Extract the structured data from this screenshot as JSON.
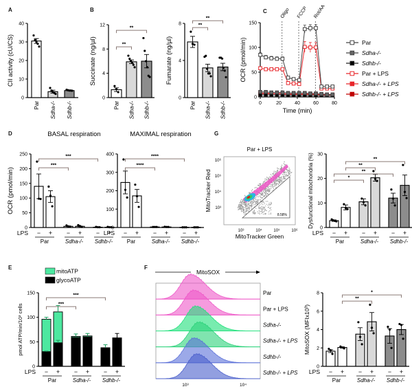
{
  "panels": {
    "A": "A",
    "B": "B",
    "C": "C",
    "D": "D",
    "E": "E",
    "F": "F",
    "G": "G"
  },
  "colors": {
    "white_bar": "#ffffff",
    "light_grey": "#d9d9d9",
    "dark_grey": "#8c8c8c",
    "mito_green": "#4de8a0",
    "glyco_black": "#000000",
    "red": "#e8262b",
    "sig_bracket": "#8a7a76",
    "magenta": "#ee58c8",
    "green_hist": "#1ee07a",
    "blue_hist": "#5a6fd8"
  },
  "lps_label": "LPS",
  "chart_data": [
    {
      "id": "A",
      "type": "bar",
      "ylabel": "CII activity (cU/CS)",
      "ylim": [
        0,
        40
      ],
      "yticks": [
        0,
        10,
        20,
        30,
        40
      ],
      "categories": [
        "Par",
        "Sdha-/-",
        "Sdhb-/-"
      ],
      "values": [
        30.5,
        3.2,
        3.8
      ],
      "errors": [
        1.3,
        0.8,
        0.2
      ],
      "points": [
        [
          33.5,
          31,
          30,
          29,
          27.5
        ],
        [
          5.2,
          3.8,
          3,
          2.5,
          2
        ],
        [
          4.2,
          4,
          3.8,
          3.8,
          3.7
        ]
      ],
      "fills": [
        "#ffffff",
        "#d9d9d9",
        "#8c8c8c"
      ]
    },
    {
      "id": "B1",
      "type": "bar",
      "ylabel": "Succinate (ng/µl)",
      "ylim": [
        0,
        12
      ],
      "yticks": [
        0,
        4,
        8,
        12
      ],
      "categories": [
        "Par",
        "Sdha-/-",
        "Sdhb-/-"
      ],
      "values": [
        1.3,
        5.9,
        6.0
      ],
      "errors": [
        0.3,
        0.3,
        1.1
      ],
      "points": [
        [
          1.9,
          1.4,
          0.9
        ],
        [
          6.9,
          6.4,
          6.0,
          5.8,
          5.4,
          5.0
        ],
        [
          9.8,
          7.7,
          6.0,
          5.0,
          3.6,
          3.4
        ]
      ],
      "fills": [
        "#ffffff",
        "#d9d9d9",
        "#8c8c8c"
      ],
      "significance": [
        {
          "from": 0,
          "to": 1,
          "label": "**",
          "level": 1
        },
        {
          "from": 0,
          "to": 2,
          "label": "**",
          "level": 2
        }
      ]
    },
    {
      "id": "B2",
      "type": "bar",
      "ylabel": "Fumarate (ng/µl)",
      "ylim": [
        0,
        8
      ],
      "yticks": [
        0,
        4,
        8
      ],
      "categories": [
        "Par",
        "Sdha-/-",
        "Sdhb-/-"
      ],
      "values": [
        6.0,
        3.2,
        3.3
      ],
      "errors": [
        0.6,
        0.4,
        0.4
      ],
      "points": [
        [
          7.1,
          5.8,
          5.7
        ],
        [
          4.4,
          4.5,
          3.1,
          2.6,
          2.6,
          2.3
        ],
        [
          4.3,
          4.3,
          4.2,
          3.2,
          2.9,
          2.2
        ]
      ],
      "fills": [
        "#ffffff",
        "#d9d9d9",
        "#8c8c8c"
      ],
      "significance": [
        {
          "from": 0,
          "to": 1,
          "label": "**",
          "level": 1
        },
        {
          "from": 0,
          "to": 2,
          "label": "**",
          "level": 2
        }
      ]
    },
    {
      "id": "C",
      "type": "line",
      "xlabel": "Time (min)",
      "ylabel": "OCR (pmol/min)",
      "xlim": [
        0,
        80
      ],
      "ylim": [
        0,
        150
      ],
      "xticks": [
        0,
        20,
        40,
        60,
        80
      ],
      "yticks": [
        0,
        50,
        100,
        150
      ],
      "x": [
        0,
        6,
        12,
        18,
        24,
        30,
        36,
        42,
        48,
        54,
        60,
        66,
        72,
        78
      ],
      "injections": [
        {
          "label": "Oligo",
          "x": 24
        },
        {
          "label": "FCCP",
          "x": 42
        },
        {
          "label": "Rot/AA",
          "x": 60
        }
      ],
      "series": [
        {
          "name": "Par",
          "italic": false,
          "stroke": "#444444",
          "fill": "#ffffff",
          "values": [
            85,
            80,
            78,
            77,
            77,
            39,
            36,
            34,
            137,
            139,
            139,
            21,
            21,
            21
          ],
          "errors": [
            4,
            4,
            4,
            4,
            4,
            2,
            2,
            2,
            8,
            7,
            7,
            2,
            2,
            2
          ]
        },
        {
          "name": "Sdha-/-",
          "italic": true,
          "stroke": "#444444",
          "fill": "#666666",
          "values": [
            10,
            10,
            9,
            9,
            9,
            8,
            8,
            8,
            8,
            7,
            7,
            6,
            5,
            5
          ],
          "errors": [
            1,
            1,
            1,
            1,
            1,
            1,
            1,
            1,
            1,
            1,
            1,
            1,
            1,
            1
          ]
        },
        {
          "name": "Sdhb-/-",
          "italic": true,
          "stroke": "#222222",
          "fill": "#000000",
          "values": [
            4,
            4,
            4,
            4,
            4,
            3,
            3,
            3,
            3,
            3,
            3,
            3,
            3,
            3
          ],
          "errors": [
            0.5,
            0.5,
            0.5,
            0.5,
            0.5,
            0.5,
            0.5,
            0.5,
            0.5,
            0.5,
            0.5,
            0.5,
            0.5,
            0.5
          ]
        },
        {
          "name": "Par + LPS",
          "italic": false,
          "stroke": "#e8262b",
          "fill": "#ffffff",
          "values": [
            58,
            56,
            56,
            56,
            56,
            28,
            27,
            26,
            101,
            100,
            100,
            17,
            17,
            17
          ],
          "errors": [
            2,
            2,
            2,
            2,
            2,
            2,
            2,
            2,
            11,
            10,
            10,
            2,
            2,
            2
          ]
        },
        {
          "name": "Sdha-/- + LPS",
          "italic": true,
          "stroke": "#e8262b",
          "fill": "#e8262b",
          "values": [
            8,
            8,
            7,
            7,
            7,
            6,
            6,
            6,
            6,
            6,
            6,
            4,
            4,
            4
          ],
          "errors": [
            1,
            1,
            1,
            1,
            1,
            1,
            1,
            1,
            1,
            1,
            1,
            1,
            1,
            1
          ]
        },
        {
          "name": "Sdhb-/- + LPS",
          "italic": true,
          "stroke": "#c00000",
          "fill": "#c00000",
          "values": [
            6,
            6,
            6,
            6,
            6,
            5,
            5,
            5,
            5,
            5,
            5,
            4,
            4,
            4
          ],
          "errors": [
            0.5,
            0.5,
            0.5,
            0.5,
            0.5,
            0.5,
            0.5,
            0.5,
            0.5,
            0.5,
            0.5,
            0.5,
            0.5,
            0.5
          ]
        }
      ]
    },
    {
      "id": "D1",
      "type": "bar",
      "title": "BASAL respiration",
      "ylabel": "OCR (pmol/min)",
      "ylim": [
        0,
        250
      ],
      "yticks": [
        0,
        50,
        100,
        150,
        200,
        250
      ],
      "groups": [
        "Par",
        "Sdha-/-",
        "Sdhb-/-"
      ],
      "lps": [
        "−",
        "+",
        "−",
        "+",
        "−",
        "+"
      ],
      "values": [
        140,
        105,
        4,
        4,
        1,
        1
      ],
      "errors": [
        42,
        20,
        1,
        1,
        0.3,
        0.3
      ],
      "points": [
        [
          224,
          98,
          97
        ],
        [
          139,
          108,
          72
        ],
        [
          7,
          4,
          3
        ],
        [
          8,
          5,
          2
        ],
        [
          2,
          1,
          1
        ],
        [
          2,
          1,
          1
        ]
      ],
      "fills": [
        "#ffffff",
        "#ffffff",
        "#ffffff",
        "#ffffff",
        "#ffffff",
        "#ffffff"
      ],
      "significance": [
        {
          "from": 0,
          "to": 2,
          "label": "***",
          "level": 1
        },
        {
          "from": 0,
          "to": 4,
          "label": "***",
          "level": 2
        }
      ]
    },
    {
      "id": "D2",
      "type": "bar",
      "title": "MAXIMAL respiration",
      "ylabel": "",
      "ylim": [
        0,
        400
      ],
      "yticks": [
        0,
        100,
        200,
        300,
        400
      ],
      "groups": [
        "Par",
        "Sdha-/-",
        "Sdhb-/-"
      ],
      "lps": [
        "−",
        "+",
        "−",
        "+",
        "−",
        "+"
      ],
      "values": [
        245,
        172,
        3,
        3,
        1,
        1
      ],
      "errors": [
        62,
        35,
        0.5,
        0.5,
        0.3,
        0.3
      ],
      "points": [
        [
          370,
          205,
          163
        ],
        [
          233,
          170,
          112
        ],
        [
          3,
          3,
          3
        ],
        [
          4,
          3,
          3
        ],
        [
          1,
          1,
          1
        ],
        [
          1,
          1,
          1
        ]
      ],
      "fills": [
        "#ffffff",
        "#ffffff",
        "#ffffff",
        "#ffffff",
        "#ffffff",
        "#ffffff"
      ],
      "significance": [
        {
          "from": 0,
          "to": 2,
          "label": "****",
          "level": 1
        },
        {
          "from": 0,
          "to": 4,
          "label": "****",
          "level": 2
        }
      ]
    },
    {
      "id": "E",
      "type": "bar",
      "stacked": true,
      "ylabel": "pmol ATP/min/10³ cells",
      "ylim": [
        0,
        150
      ],
      "yticks": [
        0,
        50,
        100,
        150
      ],
      "groups": [
        "Par",
        "Sdha-/-",
        "Sdhb-/-"
      ],
      "lps": [
        "−",
        "+",
        "−",
        "+",
        "−",
        "+"
      ],
      "legend": [
        {
          "name": "mitoATP",
          "color": "#4de8a0"
        },
        {
          "name": "glycoATP",
          "color": "#000000"
        }
      ],
      "series": [
        {
          "name": "glycoATP",
          "values": [
            30,
            48,
            59,
            60,
            37,
            58
          ],
          "errors": [
            1,
            5,
            5,
            5,
            6,
            9
          ]
        },
        {
          "name": "mitoATP",
          "values": [
            66,
            63,
            2,
            2,
            1,
            0
          ],
          "errors": [
            4,
            13,
            0,
            0,
            0,
            0
          ]
        }
      ],
      "significance": [
        {
          "from": 0,
          "to": 2,
          "label": "***",
          "level": 1
        },
        {
          "from": 0,
          "to": 4,
          "label": "***",
          "level": 2
        }
      ]
    },
    {
      "id": "F1",
      "type": "histogram-stack",
      "title": "MitoSOX",
      "xticks": [
        "10³",
        "10⁴"
      ],
      "tracks": [
        {
          "name": "Par",
          "italic": false,
          "color": "#ee58c8",
          "peak": 0.55
        },
        {
          "name": "Par + LPS",
          "italic": false,
          "color": "#ee58c8",
          "peak": 0.7
        },
        {
          "name": "Sdha-/-",
          "italic": true,
          "color": "#1ee07a",
          "peak": 0.8
        },
        {
          "name": "Sdha-/- + LPS",
          "italic": true,
          "color": "#2cd27a",
          "peak": 0.95
        },
        {
          "name": "Sdhb-/-",
          "italic": true,
          "color": "#5a6fd8",
          "peak": 0.72
        },
        {
          "name": "Sdhb-/- + LPS",
          "italic": true,
          "color": "#4a5fcc",
          "peak": 0.85
        }
      ]
    },
    {
      "id": "F2",
      "type": "bar",
      "ylabel": "MitoSOX (MFIx10³)",
      "ylim": [
        0,
        8
      ],
      "yticks": [
        0,
        2,
        4,
        6,
        8
      ],
      "groups": [
        "Par",
        "Sdha-/-",
        "Sdhb-/-"
      ],
      "lps": [
        "−",
        "+",
        "−",
        "+",
        "−",
        "+"
      ],
      "values": [
        1.65,
        2.05,
        3.5,
        4.85,
        3.3,
        4.0
      ],
      "errors": [
        0.15,
        0.07,
        0.7,
        1.0,
        0.8,
        0.55
      ],
      "points": [
        [
          1.9,
          1.75,
          1.35
        ],
        [
          2.15,
          2.05,
          1.95
        ],
        [
          4.8,
          3.2,
          2.4
        ],
        [
          6.7,
          4.2,
          3.6
        ],
        [
          4.3,
          4.0,
          2.0
        ],
        [
          4.6,
          4.5,
          3.0
        ]
      ],
      "fills": [
        "#ffffff",
        "#ffffff",
        "#d9d9d9",
        "#d9d9d9",
        "#8c8c8c",
        "#8c8c8c"
      ],
      "significance": [
        {
          "from": 1,
          "to": 3,
          "label": "**",
          "level": 1
        },
        {
          "from": 1,
          "to": 5,
          "label": "*",
          "level": 2
        }
      ]
    },
    {
      "id": "G1",
      "type": "scatter",
      "title": "Par + LPS",
      "xlabel": "MitoTracker Green",
      "ylabel": "MitoTracker Red",
      "xticks": [
        "10³",
        "10⁴",
        "10⁵",
        "10⁶"
      ],
      "yticks": [
        "10³",
        "10⁴",
        "10⁵",
        "10⁶"
      ],
      "gate_label": "8.58%"
    },
    {
      "id": "G2",
      "type": "bar",
      "ylabel": "Dysfunctional mitochondria (%)",
      "ylim": [
        0,
        30
      ],
      "yticks": [
        0,
        10,
        20,
        30
      ],
      "groups": [
        "Par",
        "Sdha-/-",
        "Sdhb-/-"
      ],
      "lps": [
        "−",
        "+",
        "−",
        "+",
        "−",
        "+"
      ],
      "values": [
        2.8,
        8.2,
        10.5,
        20.3,
        12,
        17.2
      ],
      "errors": [
        0.3,
        1.0,
        1.2,
        1.4,
        2.0,
        4.2
      ],
      "points": [
        [
          3.3,
          2.9,
          2.7,
          2.5
        ],
        [
          9.5,
          7.9,
          7.5
        ],
        [
          11.8,
          10.3,
          9.0
        ],
        [
          23.0,
          19.8,
          19.0
        ],
        [
          15.5,
          11.8,
          9.0
        ],
        [
          25.5,
          14.5,
          12.0
        ]
      ],
      "fills": [
        "#ffffff",
        "#ffffff",
        "#d9d9d9",
        "#d9d9d9",
        "#8c8c8c",
        "#8c8c8c"
      ],
      "significance": [
        {
          "from": 0,
          "to": 2,
          "label": "*",
          "level": 1
        },
        {
          "from": 0,
          "to": 4,
          "label": "**",
          "level": 2
        },
        {
          "from": 1,
          "to": 3,
          "label": "**",
          "level": 3
        },
        {
          "from": 1,
          "to": 5,
          "label": "**",
          "level": 4
        }
      ]
    }
  ]
}
